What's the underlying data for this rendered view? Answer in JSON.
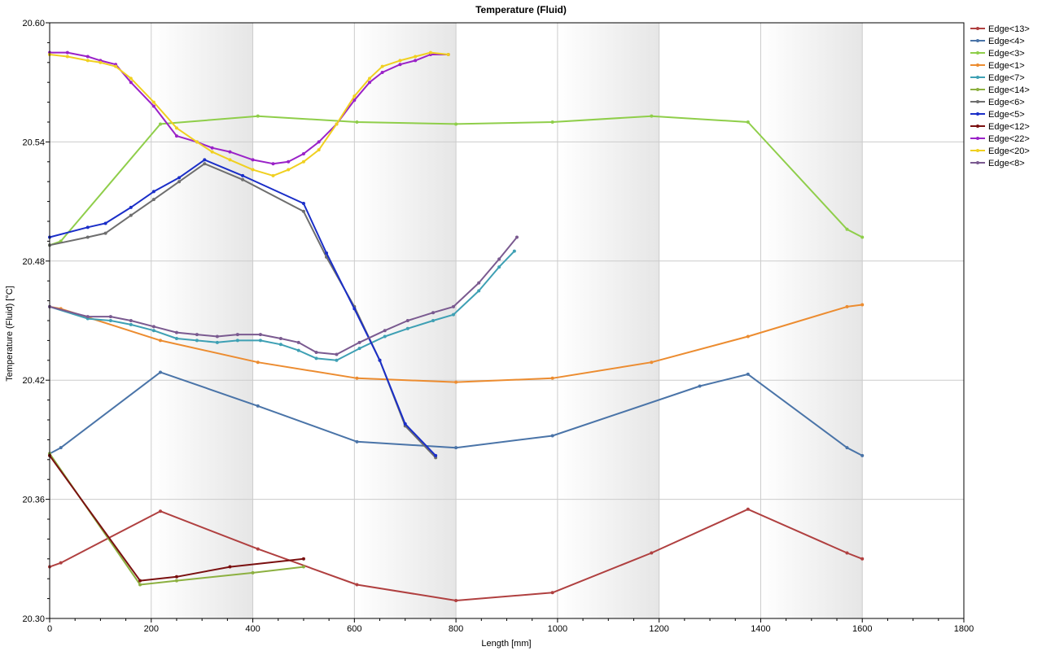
{
  "chart_data": {
    "type": "line",
    "title": "Temperature (Fluid)",
    "xlabel": "Length [mm]",
    "ylabel": "Temperature (Fluid) [°C]",
    "xlim": [
      0,
      1800
    ],
    "ylim": [
      20.3,
      20.6
    ],
    "x_ticks": [
      0,
      200,
      400,
      600,
      800,
      1000,
      1200,
      1400,
      1600,
      1800
    ],
    "y_ticks": [
      20.3,
      20.36,
      20.42,
      20.48,
      20.54,
      20.6
    ],
    "x_tick_labels": [
      "0",
      "200",
      "400",
      "600",
      "800",
      "1000",
      "1200",
      "1400",
      "1600",
      "1800"
    ],
    "y_tick_labels": [
      "20.30",
      "20.36",
      "20.42",
      "20.48",
      "20.54",
      "20.60"
    ],
    "grid": true,
    "background_bands": [
      [
        200,
        400
      ],
      [
        600,
        800
      ],
      [
        1000,
        1200
      ],
      [
        1400,
        1600
      ]
    ],
    "legend_position": "right",
    "series": [
      {
        "name": "Edge<13>",
        "color": "#b04040",
        "points": [
          [
            0,
            20.326
          ],
          [
            22,
            20.328
          ],
          [
            218,
            20.354
          ],
          [
            410,
            20.335
          ],
          [
            605,
            20.317
          ],
          [
            800,
            20.309
          ],
          [
            990,
            20.313
          ],
          [
            1185,
            20.333
          ],
          [
            1375,
            20.355
          ],
          [
            1570,
            20.333
          ],
          [
            1600,
            20.33
          ]
        ]
      },
      {
        "name": "Edge<4>",
        "color": "#4a74a8",
        "points": [
          [
            0,
            20.383
          ],
          [
            22,
            20.386
          ],
          [
            218,
            20.424
          ],
          [
            410,
            20.407
          ],
          [
            605,
            20.389
          ],
          [
            800,
            20.386
          ],
          [
            990,
            20.392
          ],
          [
            1280,
            20.417
          ],
          [
            1375,
            20.423
          ],
          [
            1570,
            20.386
          ],
          [
            1600,
            20.382
          ]
        ]
      },
      {
        "name": "Edge<3>",
        "color": "#8fce4a",
        "points": [
          [
            0,
            20.488
          ],
          [
            22,
            20.49
          ],
          [
            218,
            20.549
          ],
          [
            410,
            20.553
          ],
          [
            605,
            20.55
          ],
          [
            800,
            20.549
          ],
          [
            990,
            20.55
          ],
          [
            1185,
            20.553
          ],
          [
            1375,
            20.55
          ],
          [
            1570,
            20.496
          ],
          [
            1600,
            20.492
          ]
        ]
      },
      {
        "name": "Edge<1>",
        "color": "#ec8c30",
        "points": [
          [
            0,
            20.457
          ],
          [
            22,
            20.456
          ],
          [
            218,
            20.44
          ],
          [
            410,
            20.429
          ],
          [
            605,
            20.421
          ],
          [
            800,
            20.419
          ],
          [
            990,
            20.421
          ],
          [
            1185,
            20.429
          ],
          [
            1375,
            20.442
          ],
          [
            1570,
            20.457
          ],
          [
            1600,
            20.458
          ]
        ]
      },
      {
        "name": "Edge<7>",
        "color": "#3ea0b4",
        "points": [
          [
            0,
            20.457
          ],
          [
            75,
            20.451
          ],
          [
            120,
            20.45
          ],
          [
            160,
            20.448
          ],
          [
            205,
            20.445
          ],
          [
            250,
            20.441
          ],
          [
            290,
            20.44
          ],
          [
            330,
            20.439
          ],
          [
            370,
            20.44
          ],
          [
            415,
            20.44
          ],
          [
            455,
            20.438
          ],
          [
            490,
            20.435
          ],
          [
            525,
            20.431
          ],
          [
            565,
            20.43
          ],
          [
            610,
            20.436
          ],
          [
            660,
            20.442
          ],
          [
            705,
            20.446
          ],
          [
            755,
            20.45
          ],
          [
            795,
            20.453
          ],
          [
            845,
            20.465
          ],
          [
            885,
            20.477
          ],
          [
            915,
            20.485
          ]
        ]
      },
      {
        "name": "Edge<14>",
        "color": "#8cb040",
        "points": [
          [
            0,
            20.383
          ],
          [
            178,
            20.317
          ],
          [
            250,
            20.319
          ],
          [
            400,
            20.323
          ],
          [
            500,
            20.326
          ]
        ]
      },
      {
        "name": "Edge<6>",
        "color": "#6e6e6e",
        "points": [
          [
            0,
            20.488
          ],
          [
            75,
            20.492
          ],
          [
            110,
            20.494
          ],
          [
            160,
            20.503
          ],
          [
            205,
            20.511
          ],
          [
            255,
            20.52
          ],
          [
            305,
            20.529
          ],
          [
            380,
            20.521
          ],
          [
            500,
            20.505
          ],
          [
            545,
            20.482
          ],
          [
            600,
            20.457
          ],
          [
            650,
            20.43
          ],
          [
            700,
            20.397
          ],
          [
            760,
            20.381
          ]
        ]
      },
      {
        "name": "Edge<5>",
        "color": "#1a2ec8",
        "points": [
          [
            0,
            20.492
          ],
          [
            75,
            20.497
          ],
          [
            110,
            20.499
          ],
          [
            160,
            20.507
          ],
          [
            205,
            20.515
          ],
          [
            255,
            20.522
          ],
          [
            305,
            20.531
          ],
          [
            380,
            20.523
          ],
          [
            500,
            20.509
          ],
          [
            545,
            20.484
          ],
          [
            600,
            20.456
          ],
          [
            650,
            20.43
          ],
          [
            700,
            20.398
          ],
          [
            760,
            20.382
          ]
        ]
      },
      {
        "name": "Edge<12>",
        "color": "#7a1010",
        "points": [
          [
            0,
            20.382
          ],
          [
            178,
            20.319
          ],
          [
            250,
            20.321
          ],
          [
            355,
            20.326
          ],
          [
            500,
            20.33
          ]
        ]
      },
      {
        "name": "Edge<22>",
        "color": "#9a22c8",
        "points": [
          [
            0,
            20.585
          ],
          [
            35,
            20.585
          ],
          [
            75,
            20.583
          ],
          [
            100,
            20.581
          ],
          [
            130,
            20.579
          ],
          [
            160,
            20.57
          ],
          [
            205,
            20.558
          ],
          [
            250,
            20.543
          ],
          [
            290,
            20.54
          ],
          [
            320,
            20.537
          ],
          [
            355,
            20.535
          ],
          [
            400,
            20.531
          ],
          [
            440,
            20.529
          ],
          [
            470,
            20.53
          ],
          [
            500,
            20.534
          ],
          [
            530,
            20.54
          ],
          [
            565,
            20.549
          ],
          [
            600,
            20.561
          ],
          [
            630,
            20.57
          ],
          [
            655,
            20.575
          ],
          [
            690,
            20.579
          ],
          [
            720,
            20.581
          ],
          [
            750,
            20.584
          ],
          [
            785,
            20.584
          ]
        ]
      },
      {
        "name": "Edge<20>",
        "color": "#f0d020",
        "points": [
          [
            0,
            20.584
          ],
          [
            35,
            20.583
          ],
          [
            75,
            20.581
          ],
          [
            100,
            20.58
          ],
          [
            130,
            20.578
          ],
          [
            160,
            20.572
          ],
          [
            205,
            20.56
          ],
          [
            250,
            20.547
          ],
          [
            290,
            20.54
          ],
          [
            320,
            20.535
          ],
          [
            355,
            20.531
          ],
          [
            400,
            20.526
          ],
          [
            440,
            20.523
          ],
          [
            470,
            20.526
          ],
          [
            500,
            20.53
          ],
          [
            530,
            20.536
          ],
          [
            565,
            20.549
          ],
          [
            600,
            20.563
          ],
          [
            630,
            20.572
          ],
          [
            655,
            20.578
          ],
          [
            690,
            20.581
          ],
          [
            720,
            20.583
          ],
          [
            750,
            20.585
          ],
          [
            785,
            20.584
          ]
        ]
      },
      {
        "name": "Edge<8>",
        "color": "#7a5a90",
        "points": [
          [
            0,
            20.457
          ],
          [
            75,
            20.452
          ],
          [
            120,
            20.452
          ],
          [
            160,
            20.45
          ],
          [
            205,
            20.447
          ],
          [
            250,
            20.444
          ],
          [
            290,
            20.443
          ],
          [
            330,
            20.442
          ],
          [
            370,
            20.443
          ],
          [
            415,
            20.443
          ],
          [
            455,
            20.441
          ],
          [
            490,
            20.439
          ],
          [
            525,
            20.434
          ],
          [
            565,
            20.433
          ],
          [
            610,
            20.439
          ],
          [
            660,
            20.445
          ],
          [
            705,
            20.45
          ],
          [
            755,
            20.454
          ],
          [
            795,
            20.457
          ],
          [
            845,
            20.469
          ],
          [
            885,
            20.481
          ],
          [
            920,
            20.492
          ]
        ]
      }
    ]
  }
}
